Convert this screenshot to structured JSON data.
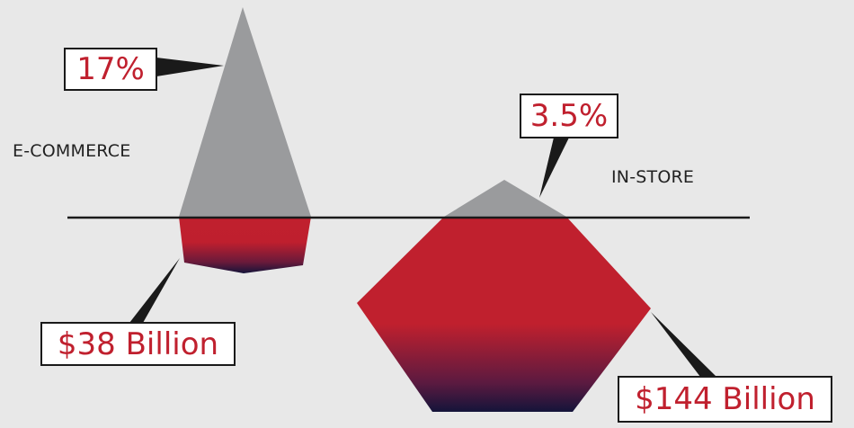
{
  "segments": {
    "ecommerce": {
      "label": "E-COMMERCE",
      "growth": "17%",
      "sales": "$38 Billion"
    },
    "instore": {
      "label": "IN-STORE",
      "growth": "3.5%",
      "sales": "$144 Billion"
    }
  },
  "colors": {
    "background": "#e8e8e8",
    "growth_shape": "#9a9b9d",
    "sales_shape": "#c0202e",
    "sales_shape_dark": "#14143a",
    "axis_line": "#1a1a1a",
    "callout_text": "#c0202e",
    "callout_border": "#1a1a1a",
    "callout_fill": "#ffffff"
  }
}
